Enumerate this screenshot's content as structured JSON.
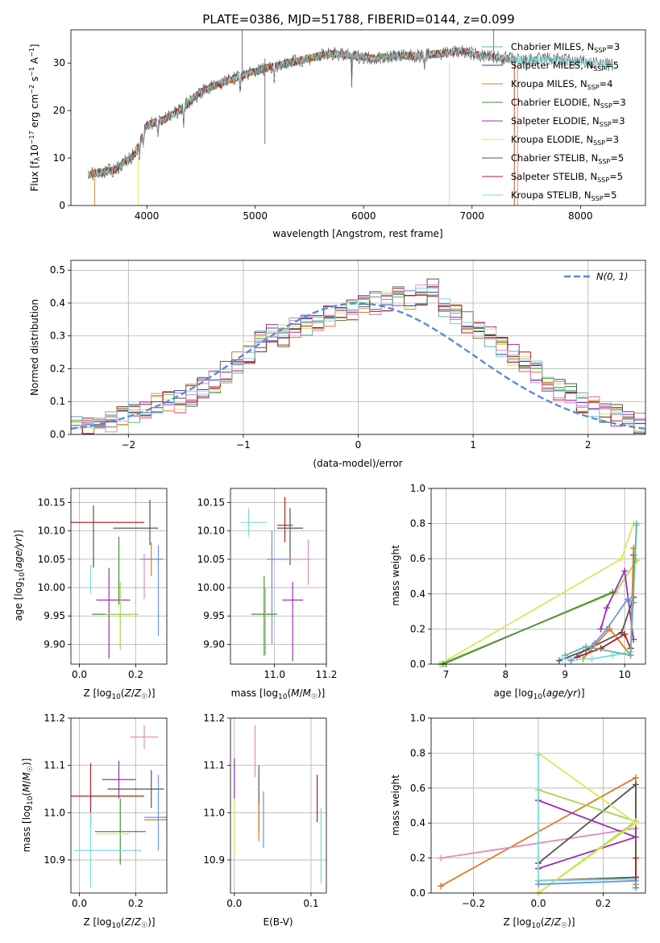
{
  "title": "PLATE=0386, MJD=51788, FIBERID=0144, z=0.099",
  "colors": {
    "Chabrier MILES": "#5bb5a0",
    "Salpeter MILES": "#3d3d9e",
    "Kroupa MILES": "#e07b1f",
    "Chabrier ELODIE": "#4e8a3e",
    "Salpeter ELODIE": "#9b2fb5",
    "Kroupa ELODIE": "#d8e85a",
    "Chabrier STELIB": "#555555",
    "Salpeter STELIB": "#b01e1e",
    "Kroupa STELIB": "#7fd8dc",
    "extra_blue": "#6f8fe0",
    "extra_pink": "#e888c0",
    "extra_green": "#a6d84a"
  },
  "panel1": {
    "xlabel": "wavelength [Angstrom, rest frame]",
    "ylabel": "Flux [f_λ 10^-17 erg cm^-2 s^-1 A^-1]",
    "xticks": [
      "4000",
      "5000",
      "6000",
      "7000",
      "8000"
    ],
    "yticks": [
      "0",
      "10",
      "20",
      "30"
    ],
    "legend": [
      {
        "name": "Chabrier MILES",
        "n": "3"
      },
      {
        "name": "Salpeter MILES",
        "n": "5"
      },
      {
        "name": "Kroupa MILES",
        "n": "4"
      },
      {
        "name": "Chabrier ELODIE",
        "n": "3"
      },
      {
        "name": "Salpeter ELODIE",
        "n": "3"
      },
      {
        "name": "Kroupa ELODIE",
        "n": "3"
      },
      {
        "name": "Chabrier STELIB",
        "n": "5"
      },
      {
        "name": "Salpeter STELIB",
        "n": "5"
      },
      {
        "name": "Kroupa STELIB",
        "n": "5"
      }
    ]
  },
  "panel2": {
    "xlabel": "(data-model)/error",
    "ylabel": "Normed distribution",
    "legend": "N(0, 1)",
    "xticks": [
      "−2",
      "−1",
      "0",
      "1",
      "2"
    ],
    "yticks": [
      "0.0",
      "0.1",
      "0.2",
      "0.3",
      "0.4",
      "0.5"
    ]
  },
  "panel3": {
    "xlabel": "Z [log10(Z/Z☉)]",
    "ylabel": "age [log10(age/yr)]",
    "xticks": [
      "0.0",
      "0.2"
    ],
    "yticks": [
      "9.90",
      "9.95",
      "10.00",
      "10.05",
      "10.10",
      "10.15"
    ]
  },
  "panel4": {
    "xlabel": "mass [log10(M/M☉)]",
    "xticks": [
      "11.0",
      "11.2"
    ],
    "yticks": [
      "9.90",
      "9.95",
      "10.00",
      "10.05",
      "10.10",
      "10.15"
    ]
  },
  "panel5": {
    "xlabel": "age [log10(age/yr)]",
    "ylabel": "mass weight",
    "xticks": [
      "7",
      "8",
      "9",
      "10"
    ],
    "yticks": [
      "0.0",
      "0.2",
      "0.4",
      "0.6",
      "0.8",
      "1.0"
    ]
  },
  "panel6": {
    "xlabel": "Z [log10(Z/Z☉)]",
    "ylabel": "mass [log10(M/M☉)]",
    "xticks": [
      "0.0",
      "0.2"
    ],
    "yticks": [
      "10.9",
      "11.0",
      "11.1",
      "11.2"
    ]
  },
  "panel7": {
    "xlabel": "E(B-V)",
    "xticks": [
      "0.0",
      "0.1"
    ],
    "yticks": [
      "10.9",
      "11.0",
      "11.1",
      "11.2"
    ]
  },
  "panel8": {
    "xlabel": "Z [log10(Z/Z☉)]",
    "ylabel": "mass weight",
    "xticks": [
      "−0.2",
      "0.0",
      "0.2"
    ],
    "yticks": [
      "0.0",
      "0.2",
      "0.4",
      "0.6",
      "0.8",
      "1.0"
    ]
  },
  "chart_data": [
    {
      "type": "line",
      "title": "PLATE=0386, MJD=51788, FIBERID=0144, z=0.099",
      "xlabel": "wavelength [Angstrom, rest frame]",
      "ylabel": "Flux [f_λ 10^-17 erg cm^-2 s^-1 A^-1]",
      "xlim": [
        3300,
        8600
      ],
      "ylim": [
        0,
        37
      ],
      "continuum_x": [
        3460,
        3700,
        3900,
        4000,
        4150,
        4300,
        4500,
        4700,
        4900,
        5100,
        5300,
        5500,
        5700,
        5900,
        6100,
        6300,
        6500,
        6700,
        6900,
        7100,
        7300,
        7500,
        7700,
        7900,
        8100,
        8300
      ],
      "continuum_y": [
        6.5,
        7.5,
        11,
        17,
        18,
        20,
        24,
        26,
        27.5,
        29,
        30,
        31,
        32,
        31.5,
        31,
        31.5,
        31.5,
        32,
        32.5,
        31.5,
        31,
        30.5,
        31,
        30.5,
        30,
        29.5
      ],
      "series": [
        {
          "name": "Chabrier MILES, N_SSP=3"
        },
        {
          "name": "Salpeter MILES, N_SSP=5"
        },
        {
          "name": "Kroupa MILES, N_SSP=4"
        },
        {
          "name": "Chabrier ELODIE, N_SSP=3"
        },
        {
          "name": "Salpeter ELODIE, N_SSP=3"
        },
        {
          "name": "Kroupa ELODIE, N_SSP=3"
        },
        {
          "name": "Chabrier STELIB, N_SSP=5"
        },
        {
          "name": "Salpeter STELIB, N_SSP=5"
        },
        {
          "name": "Kroupa STELIB, N_SSP=5"
        }
      ]
    },
    {
      "type": "histogram",
      "xlabel": "(data-model)/error",
      "ylabel": "Normed distribution",
      "xlim": [
        -2.5,
        2.5
      ],
      "ylim": [
        0,
        0.53
      ],
      "bin_edges_start": -2.5,
      "bin_width": 0.1,
      "mean_hist": [
        0.02,
        0.025,
        0.03,
        0.04,
        0.05,
        0.06,
        0.07,
        0.09,
        0.1,
        0.1,
        0.12,
        0.14,
        0.16,
        0.19,
        0.22,
        0.25,
        0.28,
        0.31,
        0.3,
        0.32,
        0.33,
        0.35,
        0.36,
        0.37,
        0.38,
        0.39,
        0.4,
        0.4,
        0.42,
        0.41,
        0.42,
        0.45,
        0.38,
        0.36,
        0.34,
        0.32,
        0.3,
        0.27,
        0.24,
        0.22,
        0.19,
        0.16,
        0.14,
        0.12,
        0.1,
        0.08,
        0.07,
        0.06,
        0.04,
        0.03
      ],
      "gaussian_legend": "N(0, 1)"
    },
    {
      "type": "scatter",
      "name": "age vs metallicity",
      "xlabel": "Z [log10(Z/Z☉)]",
      "ylabel": "age [log10(age/yr)]",
      "xlim": [
        -0.03,
        0.31
      ],
      "ylim": [
        9.865,
        10.175
      ],
      "points": [
        {
          "x": 0.1,
          "y": 10.115,
          "xerr": 0.13,
          "yerr": 0.0,
          "c": "#7fd8dc"
        },
        {
          "x": 0.1,
          "y": 10.115,
          "xerr": 0.13,
          "yerr": 0.0,
          "c": "#b01e1e"
        },
        {
          "x": 0.05,
          "y": 10.09,
          "xerr": 0.0,
          "yerr": 0.055,
          "c": "#555555"
        },
        {
          "x": 0.2,
          "y": 10.105,
          "xerr": 0.08,
          "yerr": 0.0,
          "c": "#555555"
        },
        {
          "x": 0.25,
          "y": 10.115,
          "xerr": 0.0,
          "yerr": 0.04,
          "c": "#555555"
        },
        {
          "x": 0.14,
          "y": 10.03,
          "xerr": 0.0,
          "yerr": 0.06,
          "c": "#4e8a3e"
        },
        {
          "x": 0.255,
          "y": 10.05,
          "xerr": 0.04,
          "yerr": 0.03,
          "c": "#e07b1f"
        },
        {
          "x": 0.255,
          "y": 10.05,
          "xerr": 0.04,
          "yerr": 0.0,
          "c": "#6f8fe0"
        },
        {
          "x": 0.28,
          "y": 9.995,
          "xerr": 0.0,
          "yerr": 0.08,
          "c": "#6f8fe0"
        },
        {
          "x": 0.23,
          "y": 10.02,
          "xerr": 0.0,
          "yerr": 0.04,
          "c": "#e888c0"
        },
        {
          "x": 0.04,
          "y": 10.015,
          "xerr": 0.0,
          "yerr": 0.025,
          "c": "#7fd8dc"
        },
        {
          "x": 0.12,
          "y": 9.978,
          "xerr": 0.06,
          "yerr": 0.0,
          "c": "#9b2fb5"
        },
        {
          "x": 0.105,
          "y": 9.955,
          "xerr": 0.0,
          "yerr": 0.08,
          "c": "#9b2fb5"
        },
        {
          "x": 0.115,
          "y": 9.953,
          "xerr": 0.07,
          "yerr": 0.0,
          "c": "#4e8a3e"
        },
        {
          "x": 0.15,
          "y": 9.953,
          "xerr": 0.06,
          "yerr": 0.0,
          "c": "#a6d84a"
        },
        {
          "x": 0.145,
          "y": 9.95,
          "xerr": 0.0,
          "yerr": 0.06,
          "c": "#a6d84a"
        }
      ]
    },
    {
      "type": "scatter",
      "name": "age vs mass",
      "xlabel": "mass [log10(M/M☉)]",
      "xlim": [
        10.83,
        11.2
      ],
      "ylim": [
        9.865,
        10.175
      ],
      "points": [
        {
          "x": 10.92,
          "y": 10.115,
          "xerr": 0.05,
          "yerr": 0.0,
          "c": "#7fd8dc"
        },
        {
          "x": 10.9,
          "y": 10.115,
          "xerr": 0.0,
          "yerr": 0.025,
          "c": "#7fd8dc"
        },
        {
          "x": 11.04,
          "y": 10.11,
          "xerr": 0.03,
          "yerr": 0.0,
          "c": "#b01e1e"
        },
        {
          "x": 11.04,
          "y": 10.12,
          "xerr": 0.0,
          "yerr": 0.04,
          "c": "#b01e1e"
        },
        {
          "x": 11.06,
          "y": 10.105,
          "xerr": 0.05,
          "yerr": 0.0,
          "c": "#555555"
        },
        {
          "x": 11.06,
          "y": 10.09,
          "xerr": 0.0,
          "yerr": 0.05,
          "c": "#555555"
        },
        {
          "x": 11.02,
          "y": 10.05,
          "xerr": 0.05,
          "yerr": 0.0,
          "c": "#6f8fe0"
        },
        {
          "x": 11.1,
          "y": 10.05,
          "xerr": 0.04,
          "yerr": 0.0,
          "c": "#e888c0"
        },
        {
          "x": 11.13,
          "y": 10.045,
          "xerr": 0.0,
          "yerr": 0.04,
          "c": "#e888c0"
        },
        {
          "x": 10.99,
          "y": 10.04,
          "xerr": 0.0,
          "yerr": 0.04,
          "c": "#e07b1f"
        },
        {
          "x": 10.99,
          "y": 10.0,
          "xerr": 0.0,
          "yerr": 0.1,
          "c": "#6f8fe0"
        },
        {
          "x": 11.07,
          "y": 9.978,
          "xerr": 0.04,
          "yerr": 0.0,
          "c": "#9b2fb5"
        },
        {
          "x": 11.07,
          "y": 9.94,
          "xerr": 0.0,
          "yerr": 0.07,
          "c": "#9b2fb5"
        },
        {
          "x": 10.96,
          "y": 9.953,
          "xerr": 0.05,
          "yerr": 0.0,
          "c": "#4e8a3e"
        },
        {
          "x": 10.965,
          "y": 9.94,
          "xerr": 0.0,
          "yerr": 0.06,
          "c": "#a6d84a"
        },
        {
          "x": 10.96,
          "y": 9.95,
          "xerr": 0.0,
          "yerr": 0.07,
          "c": "#4e8a3e"
        }
      ]
    },
    {
      "type": "line",
      "name": "mass weight vs age",
      "xlabel": "age [log10(age/yr)]",
      "ylabel": "mass weight",
      "xlim": [
        6.75,
        10.35
      ],
      "ylim": [
        0,
        1
      ],
      "series": [
        {
          "c": "#d8e85a",
          "x": [
            6.9,
            9.95,
            10.15
          ],
          "y": [
            0.0,
            0.6,
            0.8
          ]
        },
        {
          "c": "#a6d84a",
          "x": [
            6.9,
            9.85,
            10.2
          ],
          "y": [
            0.0,
            0.41,
            0.59
          ]
        },
        {
          "c": "#4e8a3e",
          "x": [
            6.95,
            9.8
          ],
          "y": [
            0.0,
            0.41
          ]
        },
        {
          "c": "#9b2fb5",
          "x": [
            9.6,
            9.7,
            10.0,
            10.15
          ],
          "y": [
            0.2,
            0.32,
            0.53,
            0.14
          ]
        },
        {
          "c": "#6f8fe0",
          "x": [
            9.1,
            9.5,
            9.7,
            10.05,
            10.15
          ],
          "y": [
            0.02,
            0.12,
            0.2,
            0.37,
            0.35
          ]
        },
        {
          "c": "#555555",
          "x": [
            8.9,
            9.35,
            9.95,
            10.15,
            10.15
          ],
          "y": [
            0.02,
            0.08,
            0.18,
            0.38,
            0.62
          ]
        },
        {
          "c": "#e07b1f",
          "x": [
            9.3,
            9.75,
            10.1,
            10.15
          ],
          "y": [
            0.03,
            0.2,
            0.05,
            0.66
          ]
        },
        {
          "c": "#b01e1e",
          "x": [
            9.2,
            9.6,
            10.0,
            10.1
          ],
          "y": [
            0.04,
            0.09,
            0.17,
            0.09
          ]
        },
        {
          "c": "#7fd8dc",
          "x": [
            8.95,
            9.45,
            9.8,
            10.1,
            10.2
          ],
          "y": [
            0.03,
            0.03,
            0.05,
            0.07,
            0.79
          ]
        },
        {
          "c": "#5bb5a0",
          "x": [
            9.0,
            9.35,
            10.1,
            10.2
          ],
          "y": [
            0.05,
            0.1,
            0.05,
            0.8
          ]
        }
      ]
    },
    {
      "type": "scatter",
      "name": "mass vs metallicity",
      "xlabel": "Z [log10(Z/Z☉)]",
      "ylabel": "mass [log10(M/M☉)]",
      "xlim": [
        -0.03,
        0.31
      ],
      "ylim": [
        10.83,
        11.2
      ],
      "points": [
        {
          "x": 0.23,
          "y": 11.16,
          "xerr": 0.05,
          "yerr": 0.025,
          "c": "#e888c0"
        },
        {
          "x": 0.14,
          "y": 11.07,
          "xerr": 0.06,
          "yerr": 0.04,
          "c": "#9b2fb5"
        },
        {
          "x": 0.2,
          "y": 11.05,
          "xerr": 0.1,
          "yerr": 0.0,
          "c": "#555555"
        },
        {
          "x": 0.255,
          "y": 11.05,
          "xerr": 0.0,
          "yerr": 0.04,
          "c": "#555555"
        },
        {
          "x": 0.1,
          "y": 11.035,
          "xerr": 0.13,
          "yerr": 0.0,
          "c": "#b01e1e"
        },
        {
          "x": 0.04,
          "y": 11.035,
          "xerr": 0.0,
          "yerr": 0.07,
          "c": "#b01e1e"
        },
        {
          "x": 0.27,
          "y": 10.99,
          "xerr": 0.04,
          "yerr": 0.0,
          "c": "#6f8fe0"
        },
        {
          "x": 0.28,
          "y": 11.0,
          "xerr": 0.0,
          "yerr": 0.08,
          "c": "#6f8fe0"
        },
        {
          "x": 0.27,
          "y": 10.985,
          "xerr": 0.04,
          "yerr": 0.0,
          "c": "#e07b1f"
        },
        {
          "x": 0.145,
          "y": 10.96,
          "xerr": 0.09,
          "yerr": 0.0,
          "c": "#4e8a3e"
        },
        {
          "x": 0.145,
          "y": 10.96,
          "xerr": 0.0,
          "yerr": 0.07,
          "c": "#4e8a3e"
        },
        {
          "x": 0.12,
          "y": 10.955,
          "xerr": 0.06,
          "yerr": 0.0,
          "c": "#d8e85a"
        },
        {
          "x": 0.1,
          "y": 10.92,
          "xerr": 0.12,
          "yerr": 0.0,
          "c": "#7fd8dc"
        },
        {
          "x": 0.04,
          "y": 10.92,
          "xerr": 0.0,
          "yerr": 0.08,
          "c": "#7fd8dc"
        }
      ]
    },
    {
      "type": "scatter",
      "name": "mass vs E(B-V)",
      "xlabel": "E(B-V)",
      "xlim": [
        -0.005,
        0.12
      ],
      "ylim": [
        10.83,
        11.2
      ],
      "points": [
        {
          "x": 0.0,
          "y": 11.07,
          "xerr": 0.0,
          "yerr": 0.045,
          "c": "#9b2fb5"
        },
        {
          "x": 0.0,
          "y": 10.97,
          "xerr": 0.0,
          "yerr": 0.06,
          "c": "#d8e85a"
        },
        {
          "x": 0.027,
          "y": 11.13,
          "xerr": 0.0,
          "yerr": 0.055,
          "c": "#e888c0"
        },
        {
          "x": 0.032,
          "y": 11.03,
          "xerr": 0.0,
          "yerr": 0.07,
          "c": "#555555"
        },
        {
          "x": 0.032,
          "y": 10.98,
          "xerr": 0.0,
          "yerr": 0.04,
          "c": "#e07b1f"
        },
        {
          "x": 0.038,
          "y": 10.985,
          "xerr": 0.0,
          "yerr": 0.06,
          "c": "#6f8fe0"
        },
        {
          "x": 0.108,
          "y": 11.03,
          "xerr": 0.0,
          "yerr": 0.05,
          "c": "#b01e1e"
        },
        {
          "x": 0.113,
          "y": 10.93,
          "xerr": 0.0,
          "yerr": 0.08,
          "c": "#7fd8dc"
        }
      ]
    },
    {
      "type": "line",
      "name": "mass weight vs metallicity",
      "xlabel": "Z [log10(Z/Z☉)]",
      "ylabel": "mass weight",
      "xlim": [
        -0.33,
        0.33
      ],
      "ylim": [
        0,
        1
      ],
      "series": [
        {
          "c": "#e07b1f",
          "x": [
            -0.3,
            0.3,
            0.3
          ],
          "y": [
            0.04,
            0.66,
            0.05
          ]
        },
        {
          "c": "#e888c0",
          "x": [
            -0.3,
            0.3
          ],
          "y": [
            0.2,
            0.37
          ]
        },
        {
          "c": "#555555",
          "x": [
            0.0,
            0.3,
            0.3,
            0.0
          ],
          "y": [
            0.17,
            0.62,
            0.09,
            0.07
          ]
        },
        {
          "c": "#9b2fb5",
          "x": [
            0.0,
            0.3,
            0.0
          ],
          "y": [
            0.14,
            0.32,
            0.53
          ]
        },
        {
          "c": "#a6d84a",
          "x": [
            0.0,
            0.3,
            0.0
          ],
          "y": [
            0.0,
            0.41,
            0.59
          ]
        },
        {
          "c": "#d8e85a",
          "x": [
            0.0,
            0.3,
            0.0
          ],
          "y": [
            0.0,
            0.4,
            0.8
          ]
        },
        {
          "c": "#7fd8dc",
          "x": [
            0.0,
            0.0,
            0.3,
            0.3
          ],
          "y": [
            0.79,
            0.07,
            0.08,
            0.03
          ]
        },
        {
          "c": "#6f8fe0",
          "x": [
            0.0,
            0.3,
            0.3
          ],
          "y": [
            0.05,
            0.07,
            0.03
          ]
        },
        {
          "c": "#b01e1e",
          "x": [
            0.3,
            0.3
          ],
          "y": [
            0.09,
            0.2
          ]
        }
      ]
    }
  ]
}
